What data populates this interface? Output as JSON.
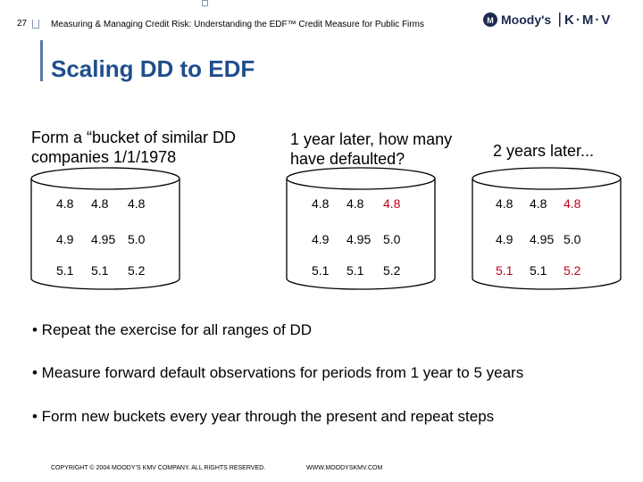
{
  "header": {
    "slide_number": "27",
    "title": "Measuring & Managing Credit Risk: Understanding the EDF™ Credit Measure for Public Firms",
    "logo_left": "Moody's",
    "logo_right": "K·M·V"
  },
  "slide": {
    "title": "Scaling DD to EDF"
  },
  "columns": [
    {
      "heading": "Form a “bucket of similar DD companies 1/1/1978",
      "rows": [
        [
          {
            "v": "4.8",
            "red": false
          },
          {
            "v": "4.8",
            "red": false
          },
          {
            "v": "4.8",
            "red": false
          }
        ],
        [
          {
            "v": "4.9",
            "red": false
          },
          {
            "v": "4.95",
            "red": false
          },
          {
            "v": "5.0",
            "red": false
          }
        ],
        [
          {
            "v": "5.1",
            "red": false
          },
          {
            "v": "5.1",
            "red": false
          },
          {
            "v": "5.2",
            "red": false
          }
        ]
      ]
    },
    {
      "heading": "1 year later, how many have defaulted?",
      "rows": [
        [
          {
            "v": "4.8",
            "red": false
          },
          {
            "v": "4.8",
            "red": false
          },
          {
            "v": "4.8",
            "red": true
          }
        ],
        [
          {
            "v": "4.9",
            "red": false
          },
          {
            "v": "4.95",
            "red": false
          },
          {
            "v": "5.0",
            "red": false
          }
        ],
        [
          {
            "v": "5.1",
            "red": false
          },
          {
            "v": "5.1",
            "red": false
          },
          {
            "v": "5.2",
            "red": false
          }
        ]
      ]
    },
    {
      "heading": "2 years later...",
      "rows": [
        [
          {
            "v": "4.8",
            "red": false
          },
          {
            "v": "4.8",
            "red": false
          },
          {
            "v": "4.8",
            "red": true
          }
        ],
        [
          {
            "v": "4.9",
            "red": false
          },
          {
            "v": "4.95",
            "red": false
          },
          {
            "v": "5.0",
            "red": false
          }
        ],
        [
          {
            "v": "5.1",
            "red": true
          },
          {
            "v": "5.1",
            "red": false
          },
          {
            "v": "5.2",
            "red": true
          }
        ]
      ]
    }
  ],
  "bullets": [
    "• Repeat the exercise for all ranges of DD",
    "• Measure forward default observations for periods from 1 year to 5  years",
    "• Form new buckets every year through the present and repeat steps"
  ],
  "footer": {
    "copyright": "COPYRIGHT © 2004 MOODY’S KMV COMPANY. ALL RIGHTS RESERVED.",
    "url": "WWW.MOODYSKMV.COM"
  },
  "colors": {
    "title_blue": "#1f4e8c",
    "accent_red": "#c0001a",
    "logo_navy": "#1c2a52"
  },
  "icons": [
    "moodys-logo-icon"
  ]
}
